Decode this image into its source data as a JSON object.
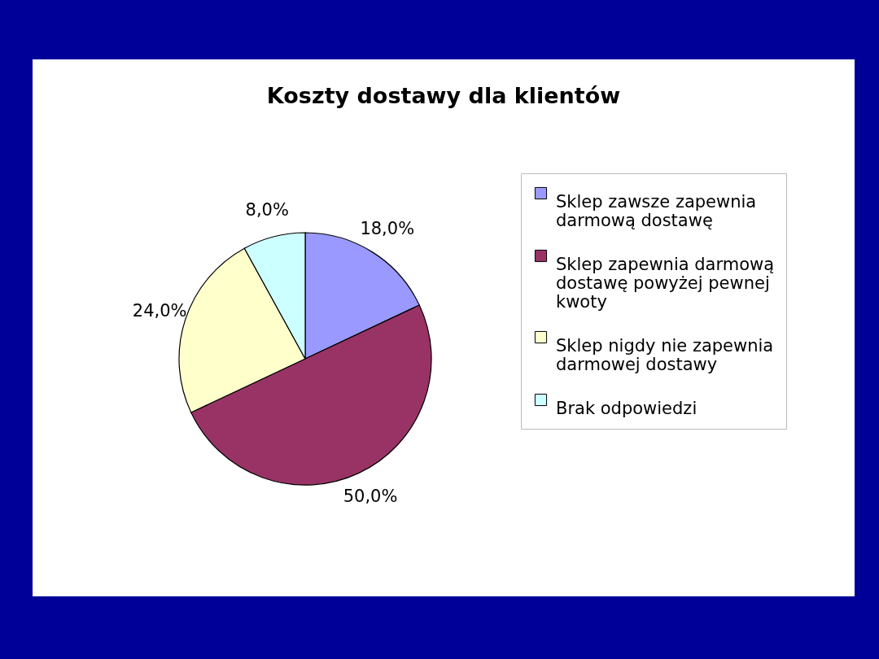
{
  "chart_data": {
    "type": "pie",
    "title": "Koszty dostawy dla klientów",
    "categories": [
      "Sklep zawsze zapewnia darmową dostawę",
      "Sklep zapewnia darmową dostawę powyżej pewnej kwoty",
      "Sklep nigdy nie zapewnia darmowej dostawy",
      "Brak odpowiedzi"
    ],
    "values": [
      18,
      50,
      24,
      8
    ],
    "colors": [
      "#9999ff",
      "#993366",
      "#ffffcc",
      "#ccffff"
    ],
    "value_labels": [
      "18,0%",
      "50,0%",
      "24,0%",
      "8,0%"
    ],
    "legend": "right"
  }
}
